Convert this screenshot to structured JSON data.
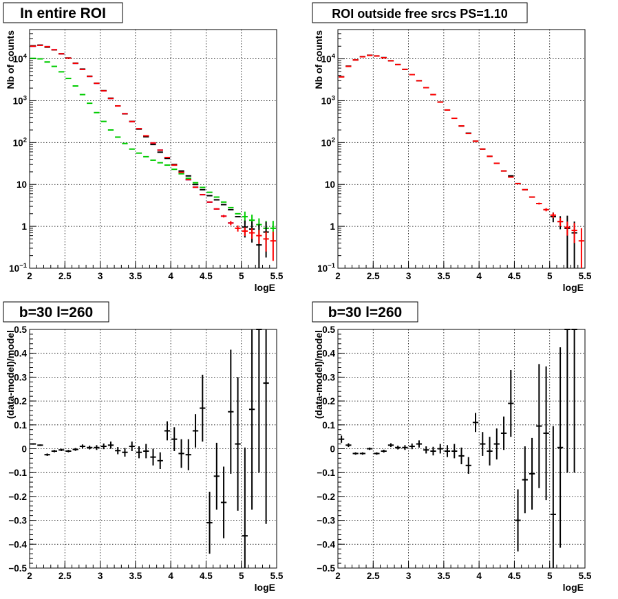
{
  "chart_data": [
    {
      "type": "scatter",
      "title": "In entire ROI",
      "xlabel": "logE",
      "ylabel": "Nb of counts",
      "xlim": [
        2,
        5.5
      ],
      "ylim": [
        0.1,
        50000
      ],
      "yscale": "log",
      "grid": true,
      "xticks": [
        "2",
        "2.5",
        "3",
        "3.5",
        "4",
        "4.5",
        "5",
        "5.5"
      ],
      "yticks": [
        {
          "value": 0.1,
          "base": "10",
          "exp": "−1"
        },
        {
          "value": 1,
          "label": "1"
        },
        {
          "value": 10,
          "label": "10"
        },
        {
          "value": 100,
          "base": "10",
          "exp": "2"
        },
        {
          "value": 1000,
          "base": "10",
          "exp": "3"
        },
        {
          "value": 10000,
          "base": "10",
          "exp": "4"
        }
      ],
      "series": [
        {
          "color": "#0000ff",
          "x": [
            2.05,
            2.15,
            2.25,
            2.35,
            2.45,
            2.55,
            2.65,
            2.75,
            2.85,
            2.95,
            3.05,
            3.15,
            3.25,
            3.35,
            3.45,
            3.55,
            3.65,
            3.75,
            3.85,
            3.95,
            4.05,
            4.15,
            4.25,
            4.35,
            4.45,
            4.55,
            4.65,
            4.75,
            4.85
          ],
          "y": [
            20000,
            21000,
            19500,
            16500,
            13200,
            10400,
            7800,
            5600,
            3800,
            2600,
            1720,
            1130,
            750,
            490,
            318,
            215,
            145,
            98,
            66,
            44,
            29,
            19.5,
            13,
            8.6,
            5.7,
            3.8,
            2.6,
            1.75,
            1.2
          ]
        },
        {
          "color": "#00cc00",
          "x": [
            2.05,
            2.15,
            2.25,
            2.35,
            2.45,
            2.55,
            2.65,
            2.75,
            2.85,
            2.95,
            3.05,
            3.15,
            3.25,
            3.35,
            3.45,
            3.55,
            3.65,
            3.75,
            3.85,
            3.95,
            4.05,
            4.15,
            4.25,
            4.35,
            4.45,
            4.55,
            4.65,
            4.75,
            4.85,
            4.95,
            5.05,
            5.15,
            5.25,
            5.35,
            5.45
          ],
          "y": [
            10300,
            10000,
            8400,
            6600,
            4900,
            3400,
            2250,
            1400,
            870,
            520,
            320,
            200,
            135,
            95,
            70,
            56,
            46,
            38,
            33,
            29,
            23,
            18,
            14,
            11,
            8.5,
            6.5,
            5,
            3.8,
            2.8,
            2,
            1.7,
            1.4,
            1.1,
            0.9,
            0.9
          ],
          "err": [
            0,
            0,
            0,
            0,
            0,
            0,
            0,
            0,
            0,
            0,
            0,
            0,
            0,
            0,
            0,
            0,
            0,
            0,
            0,
            0,
            0,
            0,
            0,
            0,
            0,
            0,
            0,
            0,
            0,
            0,
            0.55,
            0.5,
            0.45,
            0.45,
            0.45
          ]
        },
        {
          "color": "#000000",
          "x": [
            2.05,
            2.15,
            2.25,
            2.35,
            2.45,
            2.55,
            2.65,
            2.75,
            2.85,
            2.95,
            3.05,
            3.15,
            3.25,
            3.35,
            3.45,
            3.55,
            3.65,
            3.75,
            3.85,
            3.95,
            4.05,
            4.15,
            4.25,
            4.35,
            4.45,
            4.55,
            4.65,
            4.75,
            4.85,
            4.95,
            5.05,
            5.15,
            5.25,
            5.35
          ],
          "y": [
            20500,
            21300,
            19000,
            16400,
            13200,
            10500,
            7900,
            5700,
            3850,
            2620,
            1740,
            1150,
            752,
            486,
            320,
            210,
            138,
            90,
            59,
            42,
            30,
            21,
            16,
            10,
            7.5,
            5.4,
            4.3,
            3.3,
            2.5,
            1.7,
            0.96,
            0.86,
            0.36,
            0.73
          ],
          "err": [
            0,
            0,
            0,
            0,
            0,
            0,
            0,
            0,
            0,
            0,
            0,
            0,
            0,
            0,
            0,
            0,
            0,
            0,
            0,
            0,
            0,
            0,
            0,
            0,
            0,
            0,
            0,
            0,
            0,
            0,
            0.42,
            0.45,
            0.75,
            0.55
          ]
        },
        {
          "color": "#ff0000",
          "x": [
            2.05,
            2.15,
            2.25,
            2.35,
            2.45,
            2.55,
            2.65,
            2.75,
            2.85,
            2.95,
            3.05,
            3.15,
            3.25,
            3.35,
            3.45,
            3.55,
            3.65,
            3.75,
            3.85,
            3.95,
            4.05,
            4.15,
            4.25,
            4.35,
            4.45,
            4.55,
            4.65,
            4.75,
            4.85,
            4.95,
            5.05,
            5.15,
            5.25,
            5.35,
            5.45
          ],
          "y": [
            20000,
            21000,
            19500,
            16500,
            13200,
            10400,
            7800,
            5600,
            3800,
            2600,
            1720,
            1130,
            750,
            490,
            318,
            215,
            145,
            98,
            66,
            44,
            29,
            19.5,
            13,
            8.6,
            5.7,
            3.8,
            2.6,
            1.75,
            1.2,
            0.9,
            0.77,
            0.7,
            0.6,
            0.5,
            0.45
          ],
          "err": [
            0,
            0,
            0,
            0,
            0,
            0,
            0,
            0,
            0,
            0,
            0,
            0,
            0,
            0,
            0,
            0,
            0,
            0,
            0,
            0,
            0,
            0,
            0,
            0,
            0,
            0.1,
            0.1,
            0.12,
            0.14,
            0.15,
            0.18,
            0.2,
            0.22,
            0.25,
            0.3
          ]
        }
      ]
    },
    {
      "type": "scatter",
      "title": "ROI outside free srcs PS=1.10",
      "xlabel": "logE",
      "ylabel": "Nb of counts",
      "xlim": [
        2,
        5.5
      ],
      "ylim": [
        0.1,
        50000
      ],
      "yscale": "log",
      "grid": true,
      "xticks": [
        "2",
        "2.5",
        "3",
        "3.5",
        "4",
        "4.5",
        "5",
        "5.5"
      ],
      "yticks": [
        {
          "value": 0.1,
          "base": "10",
          "exp": "−1"
        },
        {
          "value": 1,
          "label": "1"
        },
        {
          "value": 10,
          "label": "10"
        },
        {
          "value": 100,
          "base": "10",
          "exp": "2"
        },
        {
          "value": 1000,
          "base": "10",
          "exp": "3"
        },
        {
          "value": 10000,
          "base": "10",
          "exp": "4"
        }
      ],
      "series": [
        {
          "color": "#000000",
          "x": [
            2.05,
            2.15,
            2.25,
            2.35,
            2.45,
            2.55,
            2.65,
            2.75,
            2.85,
            2.95,
            3.05,
            3.15,
            3.25,
            3.35,
            3.45,
            3.55,
            3.65,
            3.75,
            3.85,
            3.95,
            4.05,
            4.15,
            4.25,
            4.35,
            4.45,
            4.55,
            4.65,
            4.75,
            4.85,
            4.95,
            5.05,
            5.15,
            5.25,
            5.35
          ],
          "y": [
            3750,
            6700,
            9400,
            11300,
            12200,
            11700,
            10700,
            9000,
            7300,
            5600,
            4200,
            3000,
            2050,
            1400,
            930,
            600,
            380,
            248,
            168,
            108,
            70,
            47,
            32,
            21,
            16,
            10.5,
            7.5,
            5,
            3.5,
            2.5,
            1.7,
            1.3,
            0.9,
            0.7
          ],
          "err": [
            0,
            0,
            0,
            0,
            0,
            0,
            0,
            0,
            0,
            0,
            0,
            0,
            0,
            0,
            0,
            0,
            0,
            0,
            0,
            0,
            0,
            0,
            0,
            0,
            0,
            0,
            0,
            0,
            0,
            0,
            0.45,
            0.45,
            0.9,
            0.6
          ]
        },
        {
          "color": "#ff0000",
          "x": [
            2.05,
            2.15,
            2.25,
            2.35,
            2.45,
            2.55,
            2.65,
            2.75,
            2.85,
            2.95,
            3.05,
            3.15,
            3.25,
            3.35,
            3.45,
            3.55,
            3.65,
            3.75,
            3.85,
            3.95,
            4.05,
            4.15,
            4.25,
            4.35,
            4.45,
            4.55,
            4.65,
            4.75,
            4.85,
            4.95,
            5.05,
            5.15,
            5.25,
            5.35,
            5.45
          ],
          "y": [
            3700,
            6600,
            9400,
            11200,
            12100,
            11700,
            10600,
            9000,
            7300,
            5600,
            4200,
            3000,
            2050,
            1400,
            925,
            600,
            380,
            250,
            165,
            108,
            70,
            47,
            32,
            21,
            15,
            10.5,
            7.5,
            5,
            3.5,
            2.5,
            1.85,
            1.3,
            0.95,
            0.8,
            0.45
          ],
          "err": [
            0,
            0,
            0,
            0,
            0,
            0,
            0,
            0,
            0,
            0,
            0,
            0,
            0,
            0,
            0,
            0,
            0,
            0,
            0,
            0,
            0,
            0,
            0,
            0,
            0,
            0.12,
            0.14,
            0.16,
            0.18,
            0.22,
            0.27,
            0.3,
            0.35,
            0.4,
            0.45
          ]
        }
      ]
    },
    {
      "type": "scatter",
      "title": "b=30 l=260",
      "xlabel": "logE",
      "ylabel": "(data-model)/model",
      "xlim": [
        2,
        5.5
      ],
      "ylim": [
        -0.5,
        0.5
      ],
      "yscale": "linear",
      "grid": true,
      "xticks": [
        "2",
        "2.5",
        "3",
        "3.5",
        "4",
        "4.5",
        "5",
        "5.5"
      ],
      "yticks": [
        "−0.5",
        "−0.4",
        "−0.3",
        "−0.2",
        "−0.1",
        "0",
        "0.1",
        "0.2",
        "0.3",
        "0.4",
        "0.5"
      ],
      "series": [
        {
          "color": "#000000",
          "x": [
            2.05,
            2.15,
            2.25,
            2.35,
            2.45,
            2.55,
            2.65,
            2.75,
            2.85,
            2.95,
            3.05,
            3.15,
            3.25,
            3.35,
            3.45,
            3.55,
            3.65,
            3.75,
            3.85,
            3.95,
            4.05,
            4.15,
            4.25,
            4.35,
            4.45,
            4.55,
            4.65,
            4.75,
            4.85,
            4.95,
            5.05,
            5.15,
            5.25,
            5.35
          ],
          "y": [
            0.02,
            0.015,
            -0.025,
            -0.01,
            -0.005,
            -0.01,
            -0.003,
            0.01,
            0.005,
            0.005,
            0.01,
            0.015,
            -0.008,
            -0.015,
            0.01,
            -0.015,
            -0.01,
            -0.035,
            -0.05,
            0.075,
            0.04,
            -0.02,
            -0.025,
            0.075,
            0.17,
            -0.31,
            -0.115,
            -0.225,
            0.155,
            0.02,
            -0.365,
            0.165,
            0.5,
            0.275
          ],
          "err": [
            0.003,
            0.003,
            0.005,
            0.005,
            0.005,
            0.005,
            0.006,
            0.008,
            0.008,
            0.01,
            0.012,
            0.015,
            0.015,
            0.018,
            0.02,
            0.025,
            0.03,
            0.035,
            0.035,
            0.04,
            0.05,
            0.06,
            0.065,
            0.07,
            0.14,
            0.13,
            0.14,
            0.15,
            0.26,
            0.28,
            0.37,
            0.42,
            0.6,
            0.59
          ]
        }
      ]
    },
    {
      "type": "scatter",
      "title": "b=30 l=260",
      "xlabel": "logE",
      "ylabel": "(data-model)/model",
      "xlim": [
        2,
        5.5
      ],
      "ylim": [
        -0.5,
        0.5
      ],
      "yscale": "linear",
      "grid": true,
      "xticks": [
        "2",
        "2.5",
        "3",
        "3.5",
        "4",
        "4.5",
        "5",
        "5.5"
      ],
      "yticks": [
        "−0.5",
        "−0.4",
        "−0.3",
        "−0.2",
        "−0.1",
        "0",
        "0.1",
        "0.2",
        "0.3",
        "0.4",
        "0.5"
      ],
      "series": [
        {
          "color": "#000000",
          "x": [
            2.05,
            2.15,
            2.25,
            2.35,
            2.45,
            2.55,
            2.65,
            2.75,
            2.85,
            2.95,
            3.05,
            3.15,
            3.25,
            3.35,
            3.45,
            3.55,
            3.65,
            3.75,
            3.85,
            3.95,
            4.05,
            4.15,
            4.25,
            4.35,
            4.45,
            4.55,
            4.65,
            4.75,
            4.85,
            4.95,
            5.05,
            5.15,
            5.25,
            5.35
          ],
          "y": [
            0.04,
            0.015,
            -0.02,
            -0.02,
            0,
            -0.02,
            -0.01,
            0.015,
            0.005,
            0.005,
            0.01,
            0.02,
            -0.005,
            -0.01,
            0,
            -0.01,
            -0.01,
            -0.03,
            -0.07,
            0.11,
            0.02,
            -0.01,
            0.02,
            0.065,
            0.19,
            -0.3,
            -0.13,
            -0.105,
            0.095,
            0.065,
            -0.275,
            0.005,
            0.5,
            0.5
          ],
          "err": [
            0.015,
            0.008,
            0.005,
            0.005,
            0.005,
            0.005,
            0.006,
            0.008,
            0.008,
            0.01,
            0.012,
            0.015,
            0.015,
            0.018,
            0.02,
            0.025,
            0.03,
            0.035,
            0.035,
            0.04,
            0.05,
            0.06,
            0.065,
            0.07,
            0.14,
            0.13,
            0.14,
            0.15,
            0.26,
            0.28,
            0.37,
            0.42,
            0.6,
            0.6
          ]
        }
      ]
    }
  ]
}
